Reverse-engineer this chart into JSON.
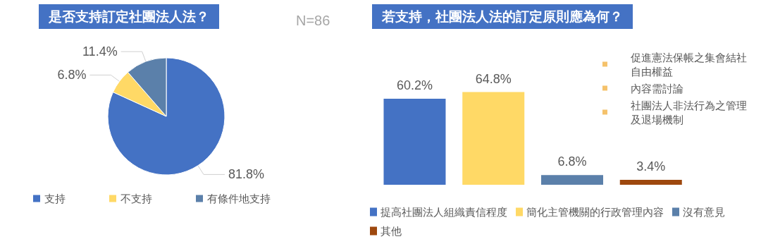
{
  "chart_data": [
    {
      "type": "pie",
      "title": "是否支持訂定社團法人法？",
      "annotations": [
        "N=86"
      ],
      "categories": [
        "支持",
        "不支持",
        "有條件地支持"
      ],
      "values": [
        81.8,
        6.8,
        11.4
      ],
      "value_labels": [
        "81.8%",
        "6.8%",
        "11.4%"
      ],
      "colors": [
        "#4472c4",
        "#ffd966",
        "#5b80aa"
      ],
      "legend": "bottom"
    },
    {
      "type": "bar",
      "title": "若支持，社團法人法的訂定原則應為何？",
      "categories": [
        null
      ],
      "legend": "bottom",
      "series": [
        {
          "name": "提高社團法人組織責信程度",
          "color": "#4472c4",
          "values": [
            60.2
          ],
          "value_labels": [
            "60.2%"
          ]
        },
        {
          "name": "簡化主管機關的行政管理內容",
          "color": "#ffd966",
          "values": [
            64.8
          ],
          "value_labels": [
            "64.8%"
          ]
        },
        {
          "name": "沒有意見",
          "color": "#5b80aa",
          "values": [
            6.8
          ],
          "value_labels": [
            "6.8%"
          ]
        },
        {
          "name": "其他",
          "color": "#9e480e",
          "values": [
            3.4
          ],
          "value_labels": [
            "3.4%"
          ]
        },
        {
          "name": "促進憲法保帳之集會結社自由權益",
          "color": "#f5c26b",
          "values": [
            null
          ]
        },
        {
          "name": "內容需討論",
          "color": "#f5c26b",
          "values": [
            null
          ]
        },
        {
          "name": "社團法人非法行為之管理及退場機制",
          "color": "#f5c26b",
          "values": [
            null
          ]
        }
      ]
    }
  ]
}
